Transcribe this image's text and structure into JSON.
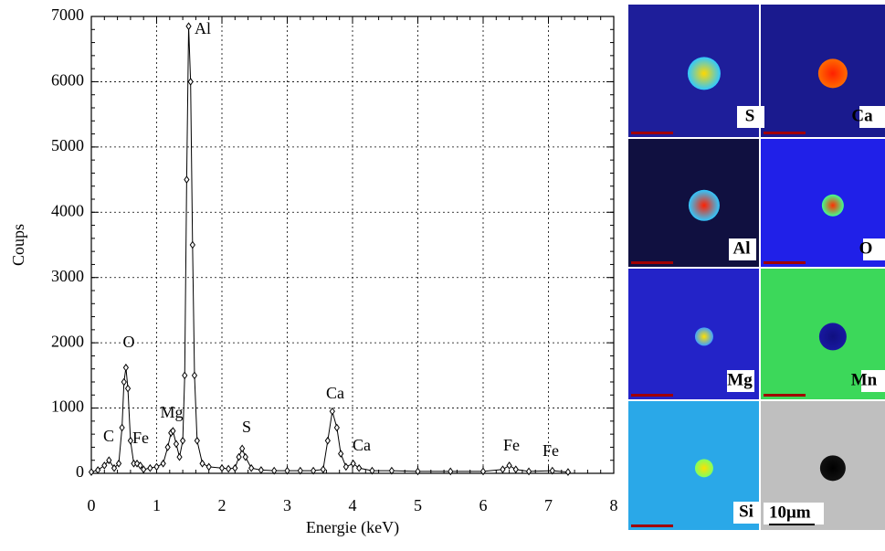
{
  "chart_data": {
    "type": "line",
    "x_label": "Energie (keV)",
    "y_label": "Coups",
    "xlim": [
      0,
      8
    ],
    "ylim": [
      0,
      7000
    ],
    "xticks": [
      0,
      1,
      2,
      3,
      4,
      5,
      6,
      7,
      8
    ],
    "yticks": [
      0,
      1000,
      2000,
      3000,
      4000,
      5000,
      6000,
      7000
    ],
    "grid": true,
    "color": "#000000",
    "x": [
      0.0,
      0.1,
      0.2,
      0.27,
      0.35,
      0.42,
      0.47,
      0.5,
      0.53,
      0.56,
      0.6,
      0.65,
      0.7,
      0.75,
      0.8,
      0.9,
      1.0,
      1.1,
      1.17,
      1.22,
      1.25,
      1.3,
      1.35,
      1.4,
      1.43,
      1.46,
      1.49,
      1.52,
      1.55,
      1.58,
      1.62,
      1.7,
      1.8,
      2.0,
      2.1,
      2.2,
      2.26,
      2.31,
      2.36,
      2.45,
      2.6,
      2.8,
      3.0,
      3.2,
      3.4,
      3.55,
      3.62,
      3.69,
      3.76,
      3.82,
      3.9,
      4.01,
      4.1,
      4.3,
      4.6,
      5.0,
      5.5,
      6.0,
      6.3,
      6.4,
      6.5,
      6.7,
      7.06,
      7.3
    ],
    "values": [
      20,
      50,
      120,
      200,
      80,
      150,
      700,
      1400,
      1620,
      1300,
      500,
      150,
      150,
      120,
      60,
      80,
      100,
      150,
      400,
      620,
      650,
      450,
      250,
      500,
      1500,
      4500,
      6850,
      6000,
      3500,
      1500,
      500,
      150,
      100,
      80,
      70,
      80,
      250,
      380,
      250,
      80,
      50,
      40,
      40,
      40,
      40,
      60,
      500,
      950,
      700,
      300,
      100,
      150,
      80,
      40,
      40,
      30,
      30,
      30,
      60,
      120,
      60,
      30,
      40,
      20
    ],
    "annotations": [
      "Al",
      "O",
      "C",
      "Fe",
      "Mg",
      "S",
      "Ca",
      "Ca",
      "Fe",
      "Fe"
    ]
  },
  "maps": {
    "labels": [
      "S",
      "Ca",
      "Al",
      "O",
      "Mg",
      "Mn",
      "Si"
    ],
    "scale_label": "10μm"
  }
}
